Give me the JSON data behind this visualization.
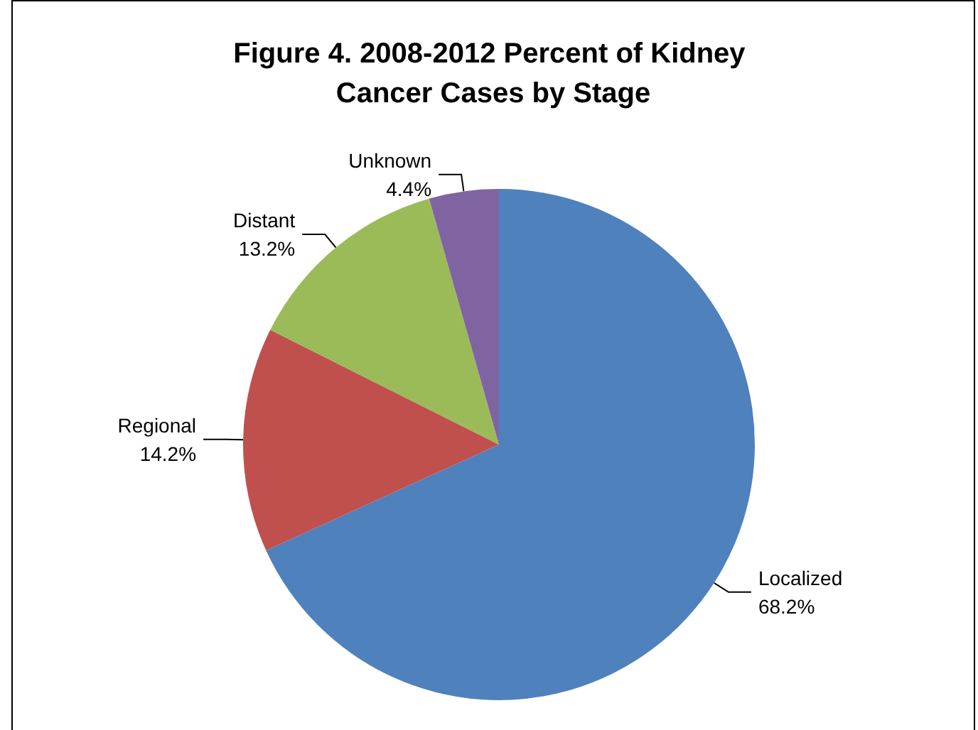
{
  "chart_data": {
    "type": "pie",
    "title": "Figure 4. 2008-2012 Percent of Kidney Cancer Cases by Stage",
    "categories": [
      "Localized",
      "Regional",
      "Distant",
      "Unknown"
    ],
    "values": [
      68.2,
      14.2,
      13.2,
      4.4
    ],
    "value_labels": [
      "68.2%",
      "14.2%",
      "13.2%",
      "4.4%"
    ],
    "colors": [
      "#4f81bd",
      "#c0504d",
      "#9bbb59",
      "#8064a2"
    ],
    "legend": false
  }
}
